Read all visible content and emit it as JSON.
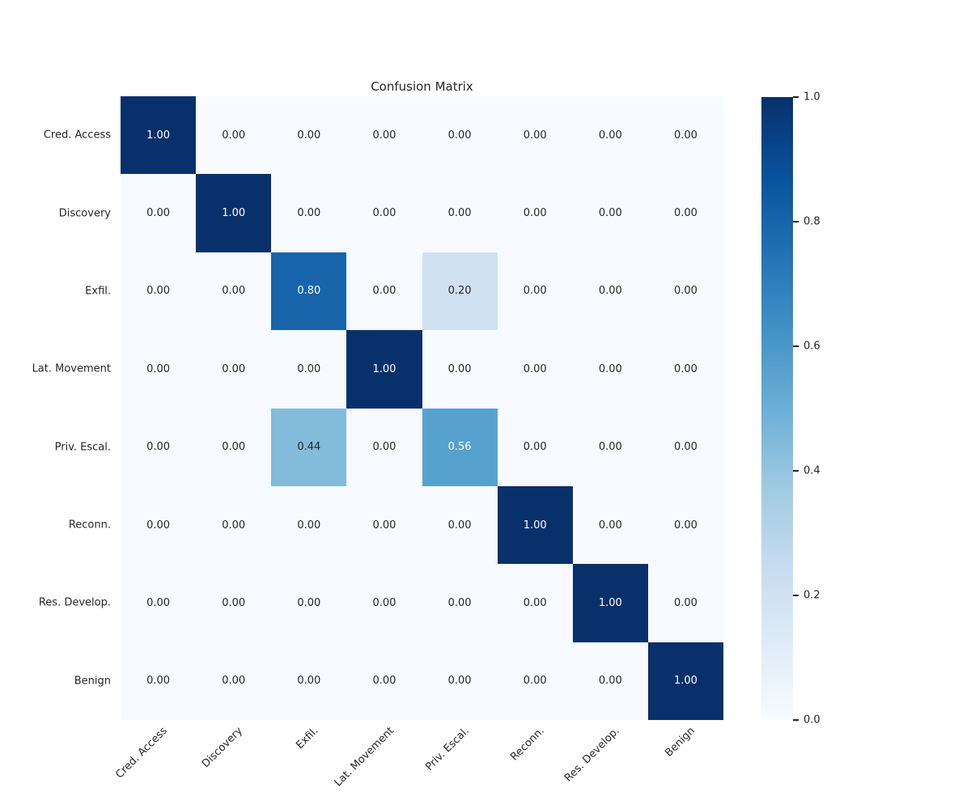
{
  "figure": {
    "background": "#ffffff"
  },
  "chart_data": {
    "type": "heatmap",
    "title": "Confusion Matrix",
    "x_categories": [
      "Cred. Access",
      "Discovery",
      "Exfil.",
      "Lat. Movement",
      "Priv. Escal.",
      "Reconn.",
      "Res. Develop.",
      "Benign"
    ],
    "y_categories": [
      "Cred. Access",
      "Discovery",
      "Exfil.",
      "Lat. Movement",
      "Priv. Escal.",
      "Reconn.",
      "Res. Develop.",
      "Benign"
    ],
    "matrix": [
      [
        1.0,
        0.0,
        0.0,
        0.0,
        0.0,
        0.0,
        0.0,
        0.0
      ],
      [
        0.0,
        1.0,
        0.0,
        0.0,
        0.0,
        0.0,
        0.0,
        0.0
      ],
      [
        0.0,
        0.0,
        0.8,
        0.0,
        0.2,
        0.0,
        0.0,
        0.0
      ],
      [
        0.0,
        0.0,
        0.0,
        1.0,
        0.0,
        0.0,
        0.0,
        0.0
      ],
      [
        0.0,
        0.0,
        0.44,
        0.0,
        0.56,
        0.0,
        0.0,
        0.0
      ],
      [
        0.0,
        0.0,
        0.0,
        0.0,
        0.0,
        1.0,
        0.0,
        0.0
      ],
      [
        0.0,
        0.0,
        0.0,
        0.0,
        0.0,
        0.0,
        1.0,
        0.0
      ],
      [
        0.0,
        0.0,
        0.0,
        0.0,
        0.0,
        0.0,
        0.0,
        1.0
      ]
    ],
    "value_decimals": 2,
    "vmin": 0.0,
    "vmax": 1.0,
    "colormap": "Blues",
    "colormap_stops": [
      [
        0.0,
        "#f7fbff"
      ],
      [
        0.125,
        "#deebf7"
      ],
      [
        0.25,
        "#c6dbef"
      ],
      [
        0.375,
        "#9ecae1"
      ],
      [
        0.5,
        "#6baed6"
      ],
      [
        0.625,
        "#4292c6"
      ],
      [
        0.75,
        "#2171b5"
      ],
      [
        0.875,
        "#08519c"
      ],
      [
        1.0,
        "#08306b"
      ]
    ],
    "annotation_color_light": "#ffffff",
    "annotation_color_dark": "#262626",
    "text_threshold": 0.5,
    "label_color": "#262626",
    "x_tick_rotation_deg": 45,
    "grid": false,
    "colorbar": {
      "tick_labels": [
        "1.0",
        "0.8",
        "0.6",
        "0.4",
        "0.2",
        "0.0"
      ],
      "tick_values": [
        1.0,
        0.8,
        0.6,
        0.4,
        0.2,
        0.0
      ],
      "tick_color": "#262626"
    }
  }
}
